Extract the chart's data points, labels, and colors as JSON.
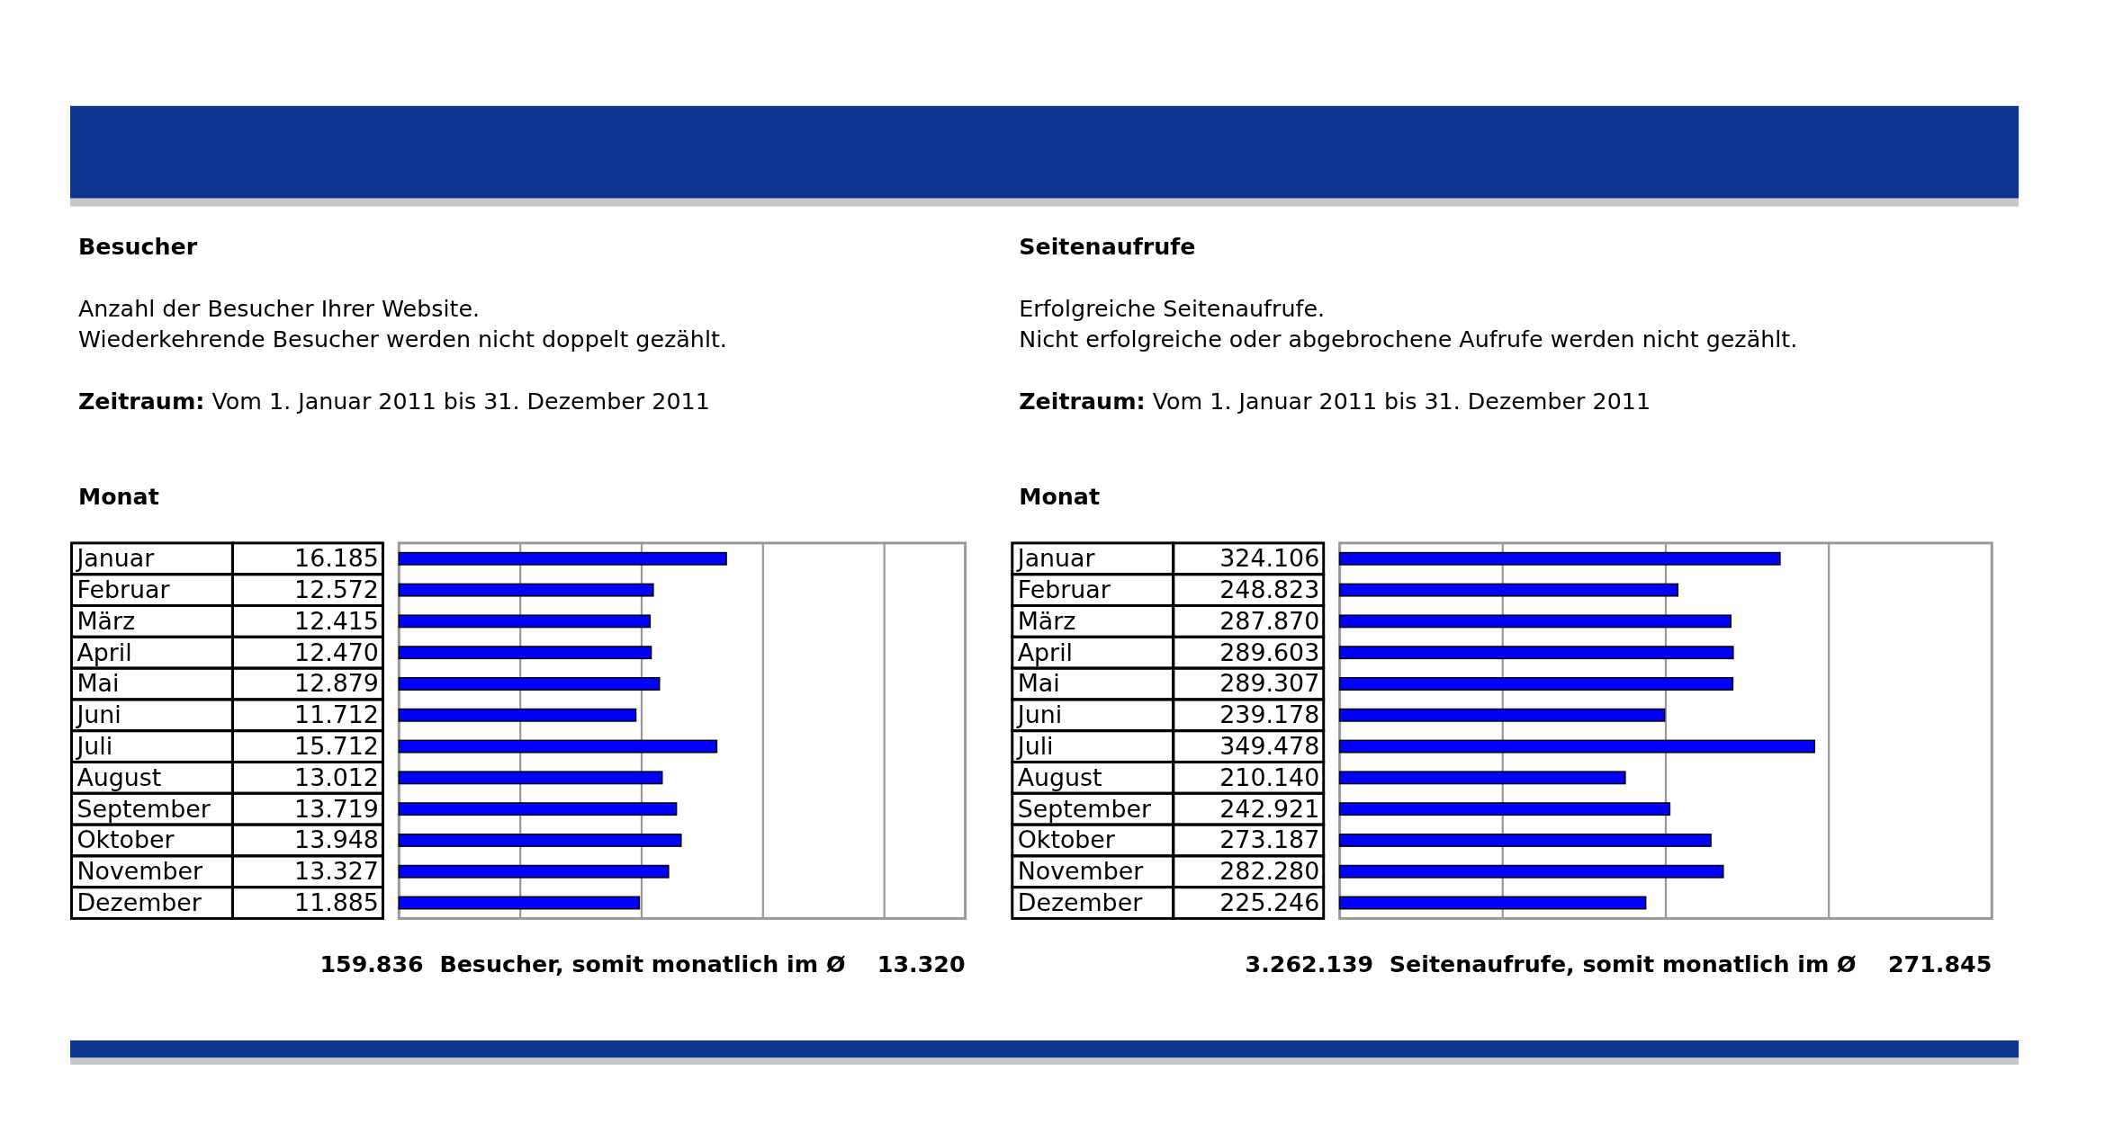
{
  "chart_data": [
    {
      "type": "bar",
      "orientation": "horizontal",
      "title": "Besucher",
      "subtitle": "Anzahl der Besucher Ihrer Website.\nWiederkehrende Besucher werden nicht doppelt gezählt.",
      "ylabel": "Monat",
      "annotations": [
        "Zeitraum: Vom 1. Januar 2011 bis 31. Dezember 2011",
        "159.836  Besucher, somit monatlich im Ø    13.320"
      ],
      "categories": [
        "Januar",
        "Februar",
        "März",
        "April",
        "Mai",
        "Juni",
        "Juli",
        "August",
        "September",
        "Oktober",
        "November",
        "Dezember"
      ],
      "values": [
        16185,
        12572,
        12415,
        12470,
        12879,
        11712,
        15712,
        13012,
        13719,
        13948,
        13327,
        11885
      ],
      "value_labels": [
        "16.185",
        "12.572",
        "12.415",
        "12.470",
        "12.879",
        "11.712",
        "15.712",
        "13.012",
        "13.719",
        "13.948",
        "13.327",
        "11.885"
      ],
      "color": "#0000ff",
      "xlim": [
        0,
        28000
      ],
      "xticks": [
        {
          "value": 6000,
          "label": null
        },
        {
          "value": 12000,
          "label": null
        },
        {
          "value": 18000,
          "label": null
        },
        {
          "value": 24000,
          "label": null
        }
      ],
      "grid": "x",
      "tick_labels": "y"
    },
    {
      "type": "bar",
      "orientation": "horizontal",
      "title": "Seitenaufrufe",
      "subtitle": "Erfolgreiche Seitenaufrufe.\nNicht erfolgreiche oder abgebrochene Aufrufe werden nicht gezählt.",
      "ylabel": "Monat",
      "annotations": [
        "Zeitraum: Vom 1. Januar 2011 bis 31. Dezember 2011",
        "3.262.139  Seitenaufrufe, somit monatlich im Ø    271.845"
      ],
      "categories": [
        "Januar",
        "Februar",
        "März",
        "April",
        "Mai",
        "Juni",
        "Juli",
        "August",
        "September",
        "Oktober",
        "November",
        "Dezember"
      ],
      "values": [
        324106,
        248823,
        287870,
        289603,
        289307,
        239178,
        349478,
        210140,
        242921,
        273187,
        282280,
        225246
      ],
      "value_labels": [
        "324.106",
        "248.823",
        "287.870",
        "289.603",
        "289.307",
        "239.178",
        "349.478",
        "210.140",
        "242.921",
        "273.187",
        "282.280",
        "225.246"
      ],
      "color": "#0000ff",
      "xlim": [
        0,
        480000
      ],
      "xticks": [
        {
          "value": 120000,
          "label": null
        },
        {
          "value": 240000,
          "label": null
        },
        {
          "value": 360000,
          "label": null
        }
      ],
      "grid": "x",
      "tick_labels": "y"
    }
  ]
}
